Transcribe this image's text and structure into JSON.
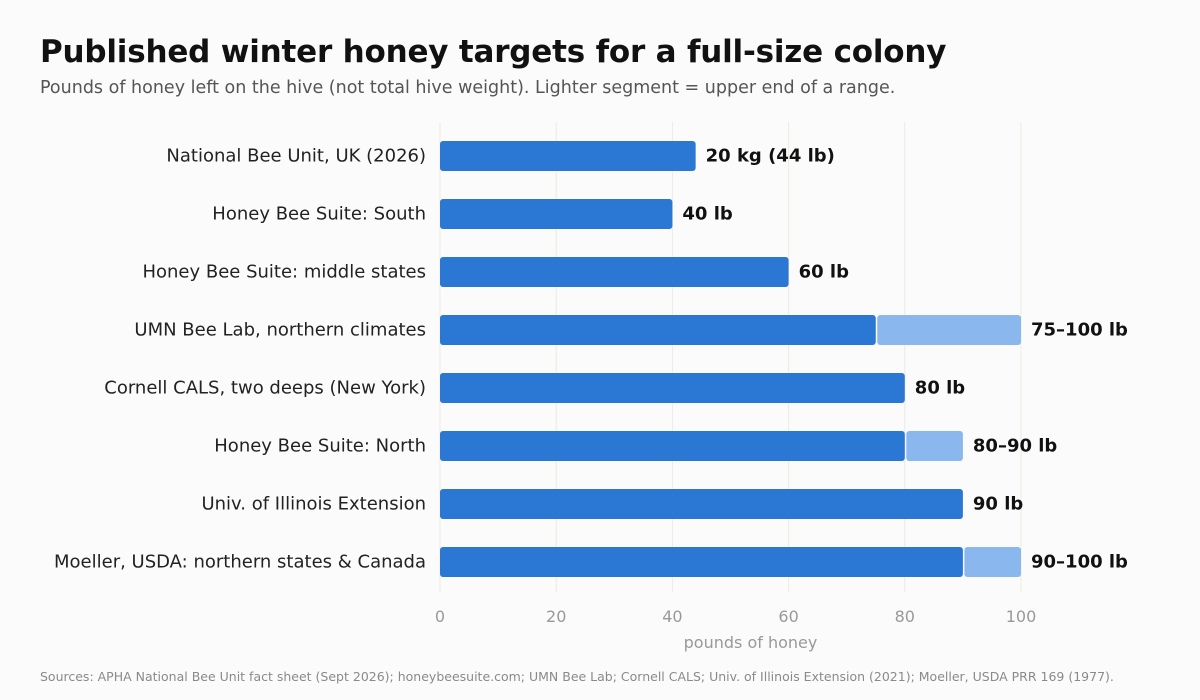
{
  "header": {
    "title": "Published winter honey targets for a full-size colony",
    "subtitle": "Pounds of honey left on the hive (not total hive weight). Lighter segment = upper end of a range."
  },
  "footer": {
    "source": "Sources: APHA National Bee Unit fact sheet (Sept 2026); honeybeesuite.com; UMN Bee Lab; Cornell CALS; Univ. of Illinois Extension (2021); Moeller, USDA PRR 169 (1977)."
  },
  "colors": {
    "primary": "#2b78d4",
    "range": "#8ab8ee",
    "grid": "#ececdf"
  },
  "chart_data": {
    "type": "bar",
    "orientation": "horizontal",
    "stacked": true,
    "xlabel": "pounds of honey",
    "xlim": [
      0,
      100
    ],
    "xticks": [
      0,
      20,
      40,
      60,
      80,
      100
    ],
    "grid": true,
    "categories": [
      "National Bee Unit, UK (2026)",
      "Honey Bee Suite: South",
      "Honey Bee Suite: middle states",
      "UMN Bee Lab, northern climates",
      "Cornell CALS, two deeps (New York)",
      "Honey Bee Suite: North",
      "Univ. of Illinois Extension",
      "Moeller, USDA: northern states & Canada"
    ],
    "low": [
      44,
      40,
      60,
      75,
      80,
      80,
      90,
      90
    ],
    "high": [
      44,
      40,
      60,
      100,
      80,
      90,
      90,
      100
    ],
    "value_labels": [
      "20 kg (44 lb)",
      "40 lb",
      "60 lb",
      "75–100 lb",
      "80 lb",
      "80–90 lb",
      "90 lb",
      "90–100 lb"
    ]
  }
}
